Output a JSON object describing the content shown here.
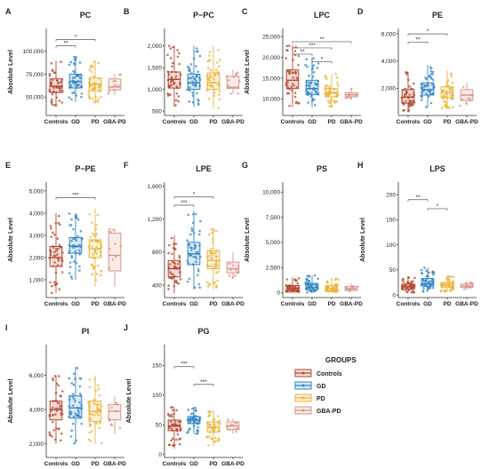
{
  "figure": {
    "legend": {
      "title": "GROUPS",
      "items": [
        {
          "label": "Controls",
          "color": "#b5462f"
        },
        {
          "label": "GD",
          "color": "#2f86c4"
        },
        {
          "label": "PD",
          "color": "#e8b53a"
        },
        {
          "label": "GBA-PD",
          "color": "#d99588"
        }
      ]
    }
  },
  "chart_data": [
    {
      "panel": "A",
      "type": "box",
      "title": "PC",
      "ylabel": "Absolute Level",
      "categories": [
        "Controls",
        "GD",
        "PD",
        "GBA-PD"
      ],
      "yticks": [
        50000,
        75000,
        100000
      ],
      "ytick_labels": [
        "50,000",
        "75,000",
        "100,000"
      ],
      "ylim": [
        30000,
        125000
      ],
      "boxes": [
        {
          "q1": 55000,
          "median": 62000,
          "q3": 70000,
          "lo": 40000,
          "hi": 90000
        },
        {
          "q1": 60000,
          "median": 67000,
          "q3": 75000,
          "lo": 45000,
          "hi": 95000
        },
        {
          "q1": 57000,
          "median": 64000,
          "q3": 71000,
          "lo": 43000,
          "hi": 90000
        },
        {
          "q1": 58000,
          "median": 61000,
          "q3": 70000,
          "lo": 52000,
          "hi": 76000
        }
      ],
      "sig": [
        {
          "a": 0,
          "b": 1,
          "label": "**",
          "y": 106000
        },
        {
          "a": 0,
          "b": 2,
          "label": "*",
          "y": 113000
        }
      ]
    },
    {
      "panel": "B",
      "type": "box",
      "title": "P−PC",
      "ylabel": "",
      "categories": [
        "Controls",
        "GD",
        "PD",
        "GBA-PD"
      ],
      "yticks": [
        500,
        1000,
        1500,
        2000
      ],
      "ytick_labels": [
        "500",
        "1,000",
        "1,500",
        "2,000"
      ],
      "ylim": [
        400,
        2400
      ],
      "boxes": [
        {
          "q1": 1030,
          "median": 1230,
          "q3": 1400,
          "lo": 600,
          "hi": 2000
        },
        {
          "q1": 1000,
          "median": 1150,
          "q3": 1350,
          "lo": 600,
          "hi": 2000
        },
        {
          "q1": 1000,
          "median": 1150,
          "q3": 1380,
          "lo": 550,
          "hi": 2000
        },
        {
          "q1": 1020,
          "median": 1050,
          "q3": 1300,
          "lo": 900,
          "hi": 1450
        }
      ],
      "sig": []
    },
    {
      "panel": "C",
      "type": "box",
      "title": "LPC",
      "ylabel": "Absolute Level",
      "categories": [
        "Controls",
        "GD",
        "PD",
        "GBA-PD"
      ],
      "yticks": [
        10000,
        15000,
        20000,
        25000
      ],
      "ytick_labels": [
        "10,000",
        "15,000",
        "20,000",
        "25,000"
      ],
      "ylim": [
        6000,
        27000
      ],
      "boxes": [
        {
          "q1": 12500,
          "median": 14500,
          "q3": 17000,
          "lo": 8000,
          "hi": 23000
        },
        {
          "q1": 11000,
          "median": 12500,
          "q3": 14500,
          "lo": 8000,
          "hi": 20000
        },
        {
          "q1": 10500,
          "median": 11500,
          "q3": 12500,
          "lo": 8000,
          "hi": 16000
        },
        {
          "q1": 10500,
          "median": 11000,
          "q3": 11500,
          "lo": 10000,
          "hi": 12500
        }
      ],
      "sig": [
        {
          "a": 0,
          "b": 1,
          "label": "**",
          "y": 20800
        },
        {
          "a": 0,
          "b": 2,
          "label": "***",
          "y": 22300
        },
        {
          "a": 1,
          "b": 2,
          "label": "*",
          "y": 19000
        },
        {
          "a": 0,
          "b": 3,
          "label": "**",
          "y": 23800
        }
      ]
    },
    {
      "panel": "D",
      "type": "box",
      "title": "PE",
      "ylabel": "",
      "categories": [
        "Controls",
        "GD",
        "PD",
        "GBA-PD"
      ],
      "yticks": [
        2000,
        4000,
        6000
      ],
      "ytick_labels": [
        "2,000",
        "4,000",
        "6,000"
      ],
      "ylim": [
        0,
        6400
      ],
      "boxes": [
        {
          "q1": 900,
          "median": 1350,
          "q3": 1900,
          "lo": 300,
          "hi": 3200
        },
        {
          "q1": 1500,
          "median": 1900,
          "q3": 2400,
          "lo": 600,
          "hi": 3700
        },
        {
          "q1": 1300,
          "median": 1700,
          "q3": 2100,
          "lo": 500,
          "hi": 3300
        },
        {
          "q1": 1100,
          "median": 1500,
          "q3": 1900,
          "lo": 700,
          "hi": 2400
        }
      ],
      "sig": [
        {
          "a": 0,
          "b": 1,
          "label": "**",
          "y": 5400
        },
        {
          "a": 0,
          "b": 2,
          "label": "*",
          "y": 6000
        }
      ]
    },
    {
      "panel": "E",
      "type": "box",
      "title": "P−PE",
      "ylabel": "Absolute Level",
      "categories": [
        "Controls",
        "GD",
        "PD",
        "GBA-PD"
      ],
      "yticks": [
        1000,
        2000,
        3000,
        4000,
        5000
      ],
      "ytick_labels": [
        "1,000",
        "2,000",
        "3,000",
        "4,000",
        "5,000"
      ],
      "ylim": [
        200,
        5400
      ],
      "boxes": [
        {
          "q1": 1600,
          "median": 2000,
          "q3": 2500,
          "lo": 400,
          "hi": 4000
        },
        {
          "q1": 2200,
          "median": 2500,
          "q3": 2900,
          "lo": 1000,
          "hi": 4000
        },
        {
          "q1": 2000,
          "median": 2400,
          "q3": 2800,
          "lo": 700,
          "hi": 4200
        },
        {
          "q1": 1400,
          "median": 2100,
          "q3": 3100,
          "lo": 700,
          "hi": 3300
        }
      ],
      "sig": [
        {
          "a": 0,
          "b": 2,
          "label": "***",
          "y": 4700
        }
      ]
    },
    {
      "panel": "F",
      "type": "box",
      "title": "LPE",
      "ylabel": "",
      "categories": [
        "Controls",
        "GD",
        "PD",
        "GBA-PD"
      ],
      "yticks": [
        400,
        800,
        1200,
        1600
      ],
      "ytick_labels": [
        "400",
        "800",
        "1,200",
        "1,600"
      ],
      "ylim": [
        250,
        1650
      ],
      "boxes": [
        {
          "q1": 500,
          "median": 600,
          "q3": 700,
          "lo": 300,
          "hi": 1000
        },
        {
          "q1": 650,
          "median": 780,
          "q3": 920,
          "lo": 350,
          "hi": 1300
        },
        {
          "q1": 600,
          "median": 700,
          "q3": 820,
          "lo": 350,
          "hi": 1100
        },
        {
          "q1": 550,
          "median": 600,
          "q3": 680,
          "lo": 480,
          "hi": 800
        }
      ],
      "sig": [
        {
          "a": 0,
          "b": 1,
          "label": "***",
          "y": 1370
        },
        {
          "a": 0,
          "b": 2,
          "label": "*",
          "y": 1470
        }
      ]
    },
    {
      "panel": "G",
      "type": "box",
      "title": "PS",
      "ylabel": "Absolute Level",
      "categories": [
        "Controls",
        "GD",
        "PD",
        "GBA-PD"
      ],
      "yticks": [
        0,
        2500,
        5000,
        7500,
        10000
      ],
      "ytick_labels": [
        "0",
        "2,500",
        "5,000",
        "7,500",
        "10,000"
      ],
      "ylim": [
        -500,
        11000
      ],
      "boxes": [
        {
          "q1": 200,
          "median": 400,
          "q3": 700,
          "lo": 0,
          "hi": 1500
        },
        {
          "q1": 300,
          "median": 500,
          "q3": 900,
          "lo": 0,
          "hi": 1700
        },
        {
          "q1": 200,
          "median": 400,
          "q3": 700,
          "lo": 0,
          "hi": 1500
        },
        {
          "q1": 200,
          "median": 350,
          "q3": 600,
          "lo": 100,
          "hi": 900
        }
      ],
      "sig": []
    },
    {
      "panel": "H",
      "type": "box",
      "title": "LPS",
      "ylabel": "Absolute Level",
      "categories": [
        "Controls",
        "GD",
        "PD",
        "GBA-PD"
      ],
      "yticks": [
        0,
        50,
        100,
        150,
        200
      ],
      "ytick_labels": [
        "0",
        "50",
        "100",
        "150",
        "200"
      ],
      "ylim": [
        -5,
        225
      ],
      "boxes": [
        {
          "q1": 12,
          "median": 16,
          "q3": 22,
          "lo": 5,
          "hi": 35
        },
        {
          "q1": 18,
          "median": 23,
          "q3": 33,
          "lo": 6,
          "hi": 55
        },
        {
          "q1": 15,
          "median": 19,
          "q3": 25,
          "lo": 6,
          "hi": 38
        },
        {
          "q1": 15,
          "median": 18,
          "q3": 22,
          "lo": 10,
          "hi": 28
        }
      ],
      "sig": [
        {
          "a": 0,
          "b": 1,
          "label": "**",
          "y": 190
        },
        {
          "a": 1,
          "b": 2,
          "label": "*",
          "y": 172
        }
      ]
    },
    {
      "panel": "I",
      "type": "box",
      "title": "PI",
      "ylabel": "Absolute Level",
      "categories": [
        "Controls",
        "GD",
        "PD",
        "GBA-PD"
      ],
      "yticks": [
        2000,
        4000,
        6000
      ],
      "ytick_labels": [
        "2,000",
        "4,000",
        "6,000"
      ],
      "ylim": [
        1200,
        7800
      ],
      "boxes": [
        {
          "q1": 3400,
          "median": 4000,
          "q3": 4500,
          "lo": 2000,
          "hi": 6000
        },
        {
          "q1": 3500,
          "median": 4100,
          "q3": 4800,
          "lo": 2000,
          "hi": 6500
        },
        {
          "q1": 3300,
          "median": 3900,
          "q3": 4500,
          "lo": 2000,
          "hi": 6000
        },
        {
          "q1": 3400,
          "median": 3900,
          "q3": 4300,
          "lo": 2600,
          "hi": 4800
        }
      ],
      "sig": []
    },
    {
      "panel": "J",
      "type": "box",
      "title": "PG",
      "ylabel": "Absolute Level",
      "categories": [
        "Controls",
        "GD",
        "PD",
        "GBA-PD"
      ],
      "yticks": [
        0,
        50,
        100,
        150
      ],
      "ytick_labels": [
        "0",
        "50",
        "100",
        "150"
      ],
      "ylim": [
        -5,
        185
      ],
      "boxes": [
        {
          "q1": 40,
          "median": 48,
          "q3": 58,
          "lo": 10,
          "hi": 80
        },
        {
          "q1": 52,
          "median": 58,
          "q3": 64,
          "lo": 35,
          "hi": 80
        },
        {
          "q1": 38,
          "median": 46,
          "q3": 55,
          "lo": 15,
          "hi": 75
        },
        {
          "q1": 42,
          "median": 48,
          "q3": 55,
          "lo": 35,
          "hi": 60
        }
      ],
      "sig": [
        {
          "a": 0,
          "b": 1,
          "label": "***",
          "y": 148
        },
        {
          "a": 1,
          "b": 2,
          "label": "***",
          "y": 118
        }
      ]
    }
  ]
}
